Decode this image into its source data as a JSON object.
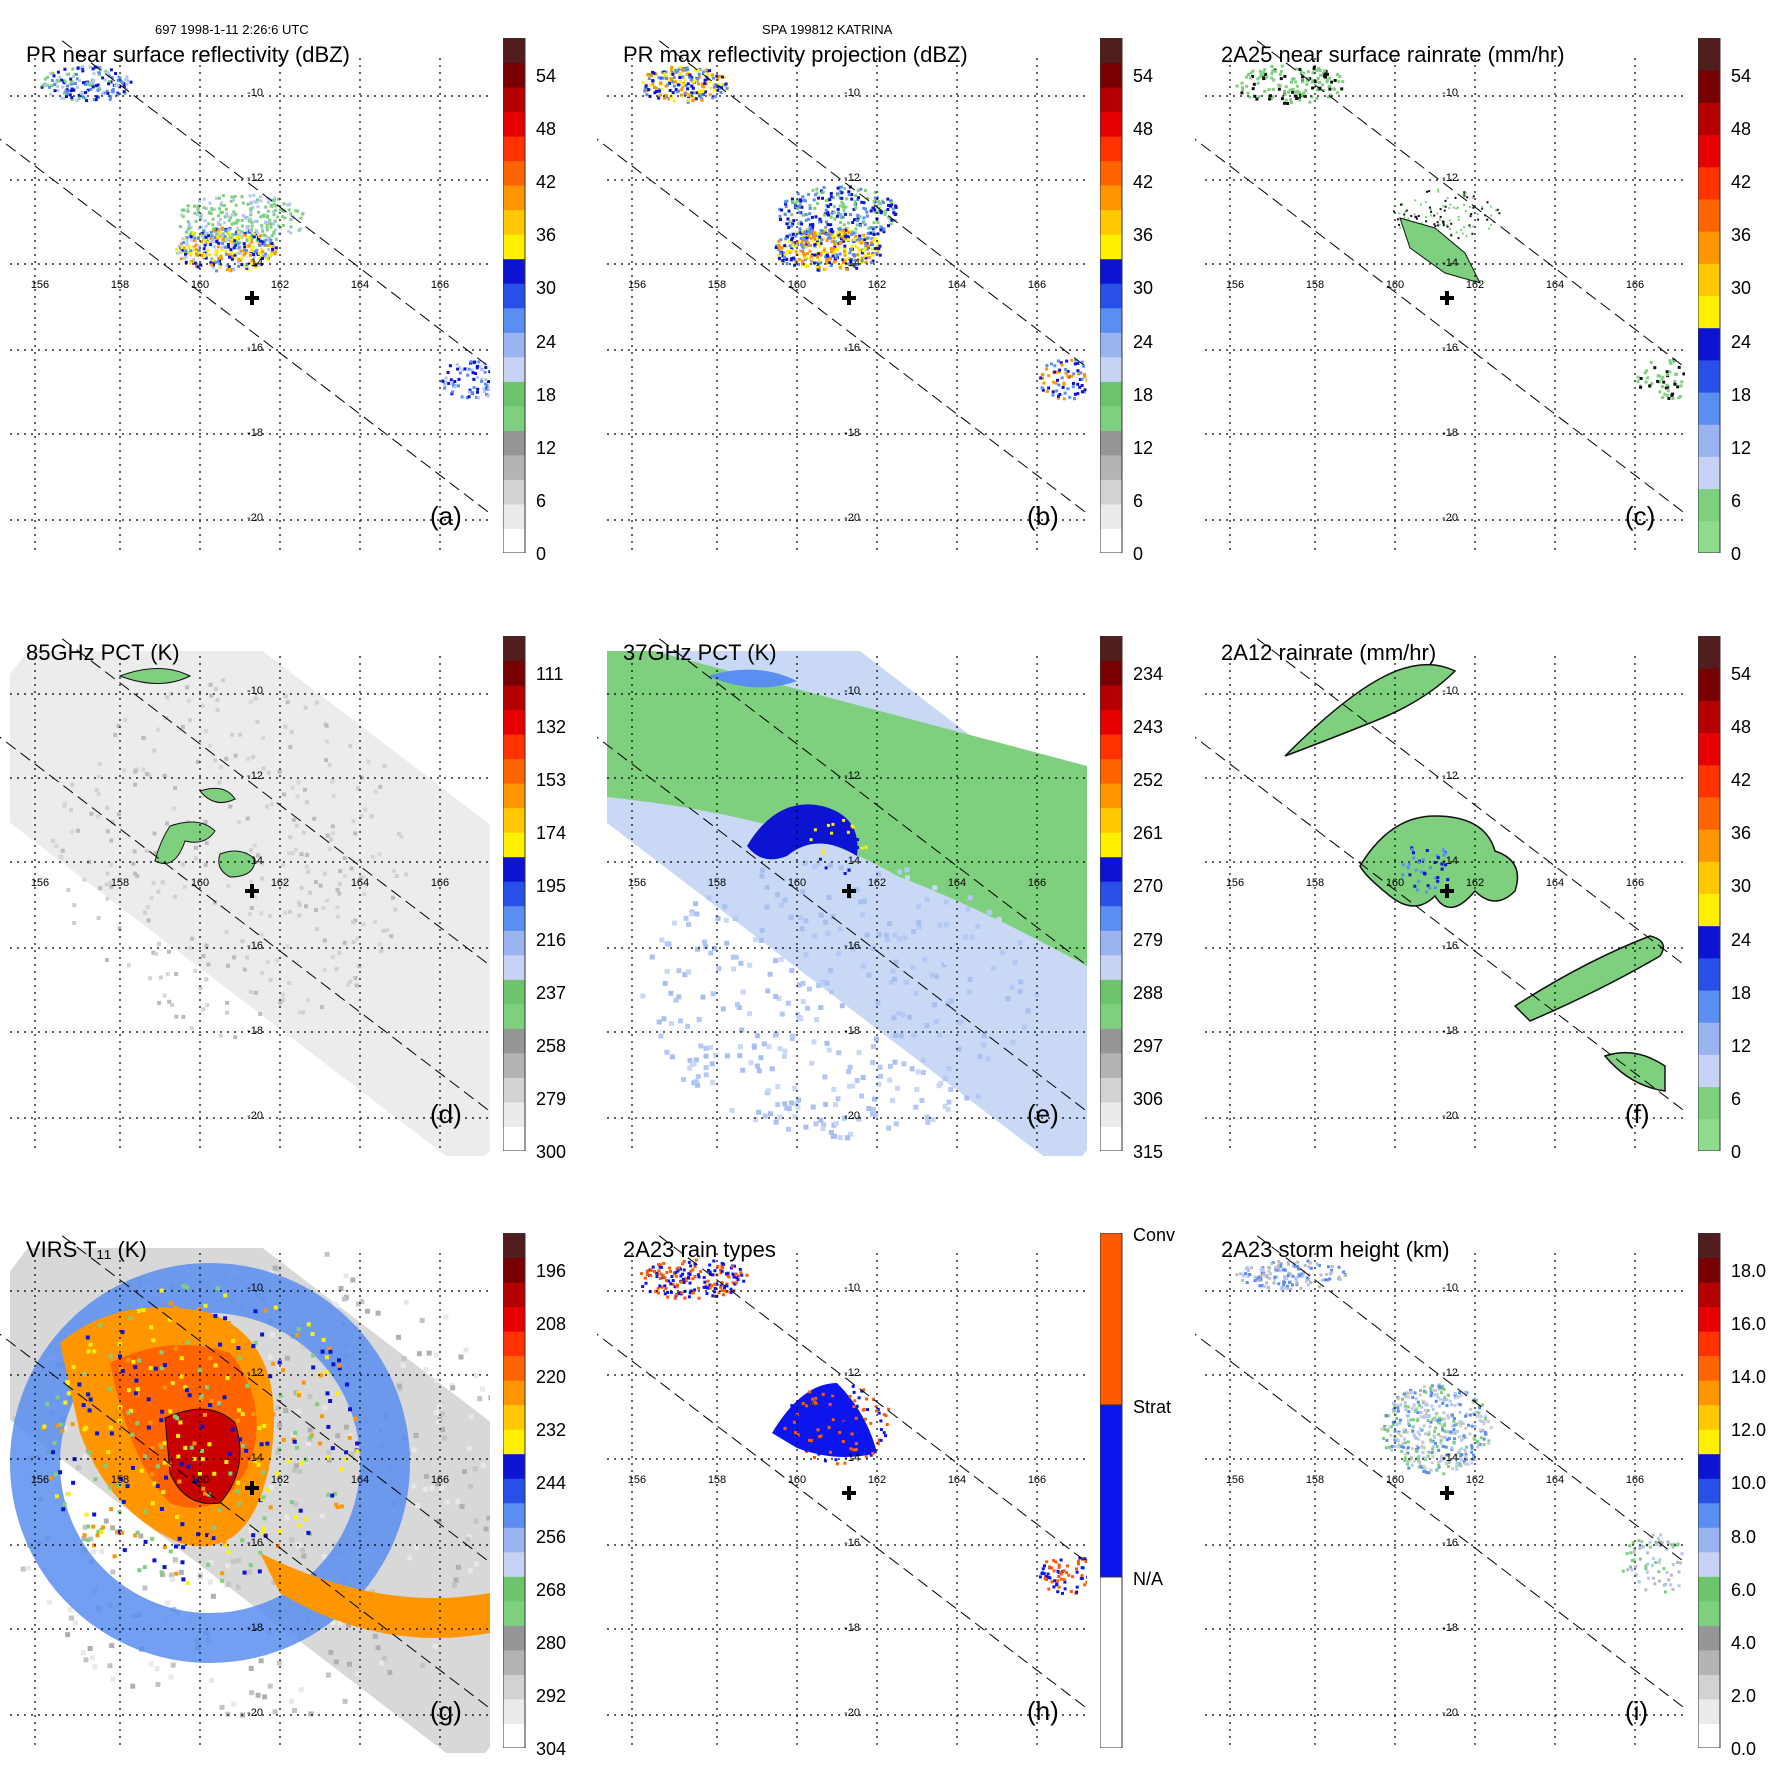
{
  "header": {
    "orbit_info": "697 1998-1-11 2:26:6 UTC",
    "storm_info": "SPA 199812 KATRINA"
  },
  "axes": {
    "longitudes": [
      "156",
      "158",
      "160",
      "162",
      "164",
      "166"
    ],
    "latitudes": [
      "-10",
      "-12",
      "-14",
      "-16",
      "-18",
      "-20"
    ]
  },
  "panels": [
    {
      "title": "PR near surface reflectivity (dBZ)",
      "label": "(a)",
      "ticks": [
        "54",
        "48",
        "42",
        "36",
        "30",
        "24",
        "18",
        "12",
        "6",
        "0"
      ],
      "scale": "dbz",
      "kind": "narrow"
    },
    {
      "title": "PR max reflectivity projection (dBZ)",
      "label": "(b)",
      "ticks": [
        "54",
        "48",
        "42",
        "36",
        "30",
        "24",
        "18",
        "12",
        "6",
        "0"
      ],
      "scale": "dbz",
      "kind": "narrow"
    },
    {
      "title": "2A25 near surface rainrate (mm/hr)",
      "label": "(c)",
      "ticks": [
        "54",
        "48",
        "42",
        "36",
        "30",
        "24",
        "18",
        "12",
        "6",
        "0"
      ],
      "scale": "rain",
      "kind": "narrow"
    },
    {
      "title": "85GHz PCT (K)",
      "label": "(d)",
      "ticks": [
        "111",
        "132",
        "153",
        "174",
        "195",
        "216",
        "237",
        "258",
        "279",
        "300"
      ],
      "scale": "pct",
      "kind": "wide"
    },
    {
      "title": "37GHz PCT (K)",
      "label": "(e)",
      "ticks": [
        "234",
        "243",
        "252",
        "261",
        "270",
        "279",
        "288",
        "297",
        "306",
        "315"
      ],
      "scale": "pct",
      "kind": "wide"
    },
    {
      "title": "2A12 rainrate (mm/hr)",
      "label": "(f)",
      "ticks": [
        "54",
        "48",
        "42",
        "36",
        "30",
        "24",
        "18",
        "12",
        "6",
        "0"
      ],
      "scale": "rain",
      "kind": "narrow"
    },
    {
      "title": "VIRS T₁₁ (K)",
      "label": "(g)",
      "ticks": [
        "196",
        "208",
        "220",
        "232",
        "244",
        "256",
        "268",
        "280",
        "292",
        "304"
      ],
      "scale": "pct",
      "kind": "wide"
    },
    {
      "title": "2A23 rain types",
      "label": "(h)",
      "ticks": [
        "Conv",
        "Strat",
        "N/A"
      ],
      "scale": "types",
      "kind": "narrow"
    },
    {
      "title": "2A23 storm height (km)",
      "label": "(i)",
      "ticks": [
        "18.0",
        "16.0",
        "14.0",
        "12.0",
        "10.0",
        "8.0",
        "6.0",
        "4.0",
        "2.0",
        "0.0"
      ],
      "scale": "height",
      "kind": "narrow"
    }
  ],
  "colors": {
    "dbz": [
      "#ffffff",
      "#ebebeb",
      "#d2d2d2",
      "#b4b4b4",
      "#969696",
      "#7ed07e",
      "#6cc46c",
      "#c8d2f5",
      "#9ab4f0",
      "#5a8ef0",
      "#2850e6",
      "#0c14d2",
      "#fff000",
      "#ffc800",
      "#ff9600",
      "#ff6400",
      "#ff3200",
      "#e60000",
      "#b40000",
      "#780000",
      "#501e1e"
    ],
    "rain": [
      "#8fdc8f",
      "#7ed07e",
      "#c8d2f5",
      "#9ab4f0",
      "#5a8ef0",
      "#2850e6",
      "#0c14d2",
      "#fff000",
      "#ffc800",
      "#ff9600",
      "#ff6400",
      "#ff3200",
      "#e60000",
      "#b40000",
      "#780000",
      "#501e1e"
    ],
    "pct": [
      "#ffffff",
      "#ebebeb",
      "#d2d2d2",
      "#b4b4b4",
      "#969696",
      "#7ed07e",
      "#6cc46c",
      "#c8d2f5",
      "#9ab4f0",
      "#5a8ef0",
      "#2850e6",
      "#0c14d2",
      "#fff000",
      "#ffc800",
      "#ff9600",
      "#ff6400",
      "#ff3200",
      "#e60000",
      "#b40000",
      "#780000",
      "#501e1e"
    ],
    "height": [
      "#ffffff",
      "#ebebeb",
      "#d2d2d2",
      "#b4b4b4",
      "#969696",
      "#7ed07e",
      "#6cc46c",
      "#c8d2f5",
      "#9ab4f0",
      "#5a8ef0",
      "#2850e6",
      "#0c14d2",
      "#fff000",
      "#ffc800",
      "#ff9600",
      "#ff6400",
      "#ff3200",
      "#e60000",
      "#b40000",
      "#780000",
      "#501e1e"
    ],
    "types": [
      "#ffffff",
      "#0c14f0",
      "#ff5a00"
    ],
    "land_green": "#7ed07e",
    "dark_blue": "#0c14d2",
    "mid_blue": "#5a8ef0",
    "light_blue": "#b4c8f5",
    "red": "#e61e00",
    "orange": "#ff9600",
    "yellow": "#fff000",
    "gray_bg": "#ececec"
  }
}
